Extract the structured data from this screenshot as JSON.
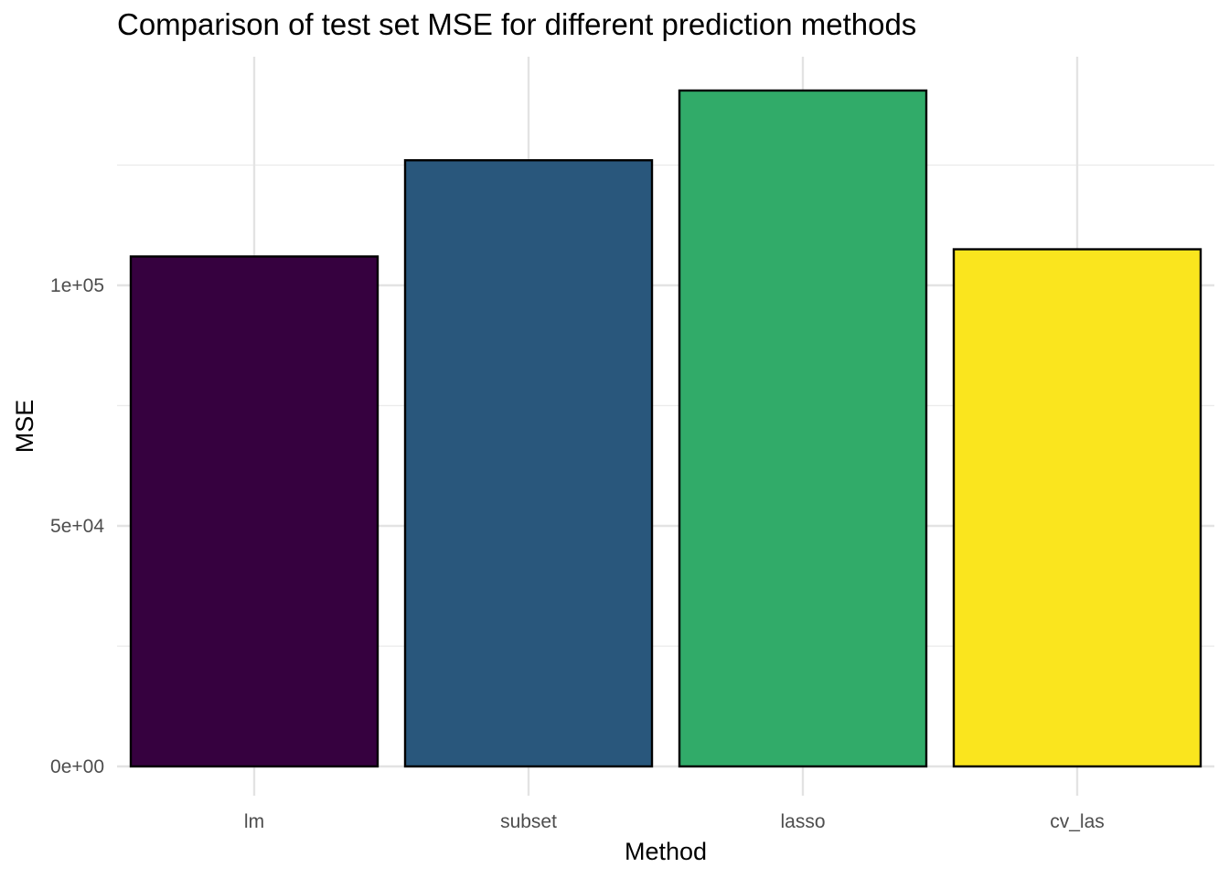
{
  "chart_data": {
    "type": "bar",
    "title": "Comparison of test set MSE for different prediction methods",
    "xlabel": "Method",
    "ylabel": "MSE",
    "categories": [
      "lm",
      "subset",
      "lasso",
      "cv_las"
    ],
    "values": [
      106000,
      126000,
      140500,
      107500
    ],
    "colors": [
      "#36013f",
      "#29577c",
      "#31ab69",
      "#fae51e"
    ],
    "y_ticks": [
      0,
      50000,
      100000
    ],
    "y_tick_labels": [
      "0e+00",
      "5e+04",
      "1e+05"
    ],
    "ylim": [
      -5000,
      147500
    ],
    "grid": true
  }
}
